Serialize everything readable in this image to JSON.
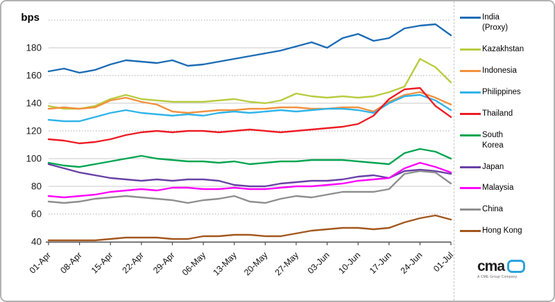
{
  "chart_data": {
    "type": "line",
    "title": "",
    "ylabel": "bps",
    "ylim": [
      40,
      200
    ],
    "ytick_step": 20,
    "ytick_labels": [
      "180",
      "160",
      "140",
      "120",
      "100",
      "80",
      "60",
      "40"
    ],
    "grid": true,
    "legend_position": "right",
    "x_tick_labels": [
      "01-Apr",
      "08-Apr",
      "15-Apr",
      "22-Apr",
      "29-Apr",
      "06-May",
      "13-May",
      "20-May",
      "27-May",
      "03-Jun",
      "10-Jun",
      "17-Jun",
      "24-Jun",
      "01-Jul"
    ],
    "x_note": "values sampled at half-week intervals from 01-Apr to 01-Jul",
    "series": [
      {
        "name": "India (Proxy)",
        "legend_lines": [
          "India",
          "(Proxy)"
        ],
        "color": "#1b6cb5",
        "values": [
          163,
          165,
          162,
          164,
          168,
          171,
          170,
          169,
          171,
          167,
          168,
          170,
          172,
          174,
          176,
          178,
          181,
          184,
          180,
          187,
          190,
          185,
          187,
          194,
          196,
          197,
          189
        ]
      },
      {
        "name": "Kazakhstan",
        "legend_lines": [
          "Kazakhstan"
        ],
        "color": "#b8cc3f",
        "values": [
          138,
          136,
          136,
          138,
          143,
          146,
          143,
          142,
          141,
          141,
          141,
          142,
          143,
          141,
          140,
          142,
          147,
          145,
          144,
          145,
          144,
          145,
          148,
          152,
          172,
          166,
          155
        ]
      },
      {
        "name": "Indonesia",
        "legend_lines": [
          "Indonesia"
        ],
        "color": "#f2913d",
        "values": [
          136,
          137,
          136,
          137,
          142,
          144,
          141,
          139,
          134,
          133,
          134,
          135,
          135,
          136,
          136,
          137,
          137,
          136,
          136,
          137,
          137,
          134,
          141,
          146,
          148,
          144,
          139
        ]
      },
      {
        "name": "Philippines",
        "legend_lines": [
          "Philippines"
        ],
        "color": "#2fb4e9",
        "values": [
          128,
          127,
          127,
          130,
          133,
          135,
          133,
          132,
          131,
          132,
          131,
          133,
          134,
          133,
          134,
          135,
          134,
          135,
          136,
          136,
          135,
          133,
          140,
          145,
          146,
          142,
          135
        ]
      },
      {
        "name": "Thailand",
        "legend_lines": [
          "Thailand"
        ],
        "color": "#ed1c24",
        "values": [
          114,
          113,
          111,
          112,
          114,
          117,
          119,
          120,
          119,
          120,
          120,
          119,
          120,
          121,
          120,
          119,
          120,
          121,
          122,
          123,
          125,
          131,
          143,
          150,
          151,
          138,
          130
        ]
      },
      {
        "name": "South Korea",
        "legend_lines": [
          "South",
          "Korea"
        ],
        "color": "#00a550",
        "values": [
          97,
          95,
          94,
          96,
          98,
          100,
          102,
          100,
          99,
          98,
          98,
          97,
          98,
          96,
          97,
          98,
          98,
          99,
          99,
          99,
          98,
          97,
          96,
          104,
          107,
          105,
          100
        ]
      },
      {
        "name": "Japan",
        "legend_lines": [
          "Japan"
        ],
        "color": "#6840a5",
        "values": [
          96,
          93,
          90,
          88,
          86,
          85,
          84,
          85,
          84,
          85,
          85,
          84,
          81,
          80,
          80,
          82,
          83,
          84,
          84,
          85,
          87,
          88,
          86,
          91,
          92,
          91,
          89
        ]
      },
      {
        "name": "Malaysia",
        "legend_lines": [
          "Malaysia"
        ],
        "color": "#ff00ff",
        "values": [
          73,
          72,
          73,
          74,
          76,
          77,
          78,
          77,
          79,
          79,
          78,
          78,
          79,
          78,
          78,
          79,
          80,
          80,
          81,
          82,
          84,
          85,
          86,
          93,
          97,
          94,
          90
        ]
      },
      {
        "name": "China",
        "legend_lines": [
          "China"
        ],
        "color": "#8e8e8e",
        "values": [
          69,
          68,
          69,
          71,
          72,
          73,
          72,
          71,
          70,
          68,
          70,
          71,
          73,
          69,
          68,
          71,
          73,
          72,
          74,
          76,
          76,
          76,
          78,
          89,
          91,
          90,
          82
        ]
      },
      {
        "name": "Hong Kong",
        "legend_lines": [
          "Hong Kong"
        ],
        "color": "#a2571c",
        "values": [
          41,
          41,
          41,
          41,
          42,
          43,
          43,
          43,
          42,
          42,
          44,
          44,
          45,
          45,
          44,
          44,
          46,
          48,
          49,
          50,
          50,
          49,
          50,
          54,
          57,
          59,
          56
        ]
      }
    ]
  },
  "branding": {
    "logo_text": "cma",
    "tagline": "A CME Group Company",
    "accent_color": "#2aa3dd"
  }
}
